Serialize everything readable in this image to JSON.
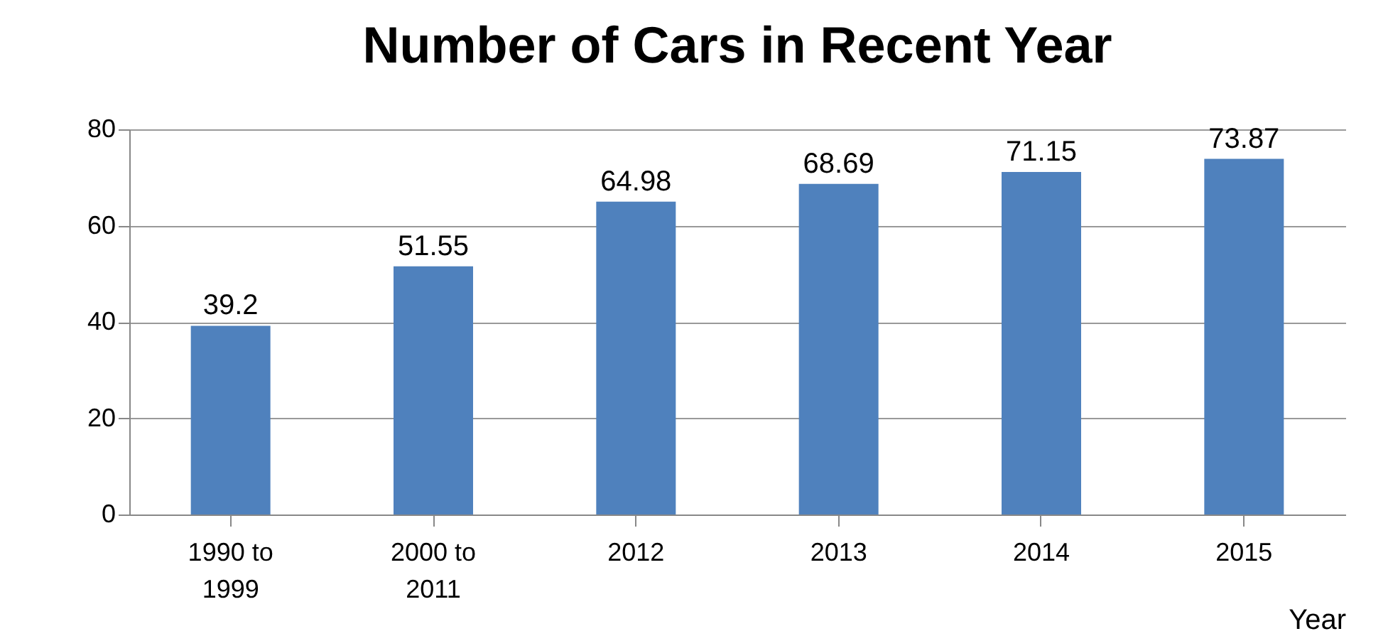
{
  "chart_data": {
    "type": "bar",
    "title": "Number of Cars in Recent Year",
    "xlabel": "Year",
    "categories": [
      "1990 to 1999",
      "2000 to 2011",
      "2012",
      "2013",
      "2014",
      "2015"
    ],
    "values": [
      39.2,
      51.55,
      64.98,
      68.69,
      71.15,
      73.87
    ],
    "color": "#4f81bd",
    "ylim": [
      0,
      80
    ],
    "yticks": [
      0,
      20,
      40,
      60,
      80
    ],
    "grid": "y",
    "data_labels": true
  }
}
